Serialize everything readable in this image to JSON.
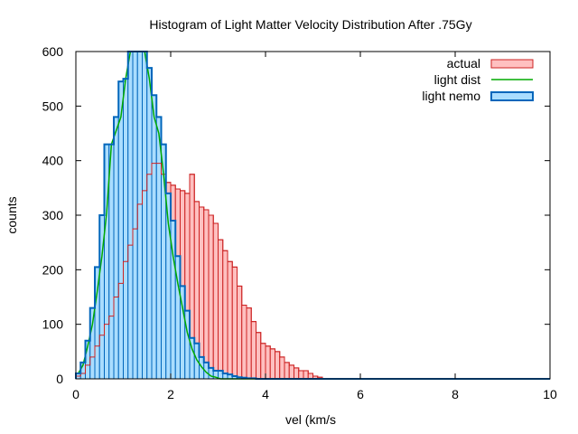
{
  "chart_data": {
    "type": "bar",
    "title": "Histogram of Light Matter Velocity Distribution After .75Gy",
    "xlabel": "vel (km/s",
    "ylabel": "counts",
    "xlim": [
      0,
      10
    ],
    "ylim": [
      0,
      600
    ],
    "x_ticks": [
      0,
      2,
      4,
      6,
      8,
      10
    ],
    "y_ticks": [
      0,
      100,
      200,
      300,
      400,
      500,
      600
    ],
    "grid": false,
    "legend_position": "top-right",
    "bin_width": 0.1,
    "series": [
      {
        "name": "actual",
        "style": "histogram",
        "fill": "#ffc0c0",
        "stroke": "#cc2222",
        "x": [
          0.05,
          0.15,
          0.25,
          0.35,
          0.45,
          0.55,
          0.65,
          0.75,
          0.85,
          0.95,
          1.05,
          1.15,
          1.25,
          1.35,
          1.45,
          1.55,
          1.65,
          1.75,
          1.85,
          1.95,
          2.05,
          2.15,
          2.25,
          2.35,
          2.45,
          2.55,
          2.65,
          2.75,
          2.85,
          2.95,
          3.05,
          3.15,
          3.25,
          3.35,
          3.45,
          3.55,
          3.65,
          3.75,
          3.85,
          3.95,
          4.05,
          4.15,
          4.25,
          4.35,
          4.45,
          4.55,
          4.65,
          4.75,
          4.85,
          4.95,
          5.05,
          5.15,
          5.25
        ],
        "values": [
          5,
          10,
          25,
          40,
          60,
          80,
          100,
          115,
          150,
          175,
          215,
          245,
          275,
          320,
          345,
          375,
          395,
          395,
          375,
          360,
          355,
          348,
          345,
          340,
          375,
          325,
          315,
          310,
          300,
          285,
          255,
          235,
          215,
          205,
          170,
          135,
          130,
          105,
          85,
          65,
          60,
          55,
          50,
          40,
          30,
          25,
          20,
          15,
          15,
          10,
          5,
          3,
          0
        ]
      },
      {
        "name": "light dist",
        "style": "line",
        "stroke": "#00aa00",
        "x": [
          0.05,
          0.15,
          0.25,
          0.35,
          0.45,
          0.55,
          0.65,
          0.75,
          0.85,
          0.95,
          1.05,
          1.15,
          1.25,
          1.35,
          1.45,
          1.55,
          1.65,
          1.75,
          1.85,
          1.95,
          2.05,
          2.15,
          2.25,
          2.35,
          2.45,
          2.55,
          2.65,
          2.75,
          2.85,
          2.95,
          3.05,
          3.15,
          3.25,
          3.35,
          3.45,
          3.55,
          3.65,
          3.75,
          3.85,
          3.95,
          4.05,
          4.5,
          5,
          5.5,
          6,
          7,
          8,
          9,
          10
        ],
        "values": [
          10,
          25,
          60,
          100,
          160,
          225,
          305,
          430,
          455,
          480,
          550,
          600,
          600,
          600,
          610,
          550,
          480,
          450,
          375,
          285,
          225,
          175,
          130,
          85,
          55,
          35,
          22,
          12,
          5,
          3,
          0,
          0,
          0,
          0,
          0,
          0,
          0,
          0,
          0,
          0,
          0,
          0,
          0,
          0,
          0,
          0,
          0,
          0,
          0
        ]
      },
      {
        "name": "light nemo",
        "style": "histogram",
        "fill": "#aaddff",
        "stroke": "#0066bb",
        "x": [
          0.05,
          0.15,
          0.25,
          0.35,
          0.45,
          0.55,
          0.65,
          0.75,
          0.85,
          0.95,
          1.05,
          1.15,
          1.25,
          1.35,
          1.45,
          1.55,
          1.65,
          1.75,
          1.85,
          1.95,
          2.05,
          2.15,
          2.25,
          2.35,
          2.45,
          2.55,
          2.65,
          2.75,
          2.85,
          2.95,
          3.05,
          3.15,
          3.25,
          3.35,
          3.45,
          3.55,
          3.65,
          3.75,
          3.85,
          3.95,
          4.05
        ],
        "values": [
          10,
          30,
          70,
          130,
          205,
          300,
          430,
          430,
          480,
          545,
          550,
          600,
          600,
          600,
          600,
          570,
          520,
          480,
          430,
          340,
          290,
          225,
          170,
          125,
          75,
          65,
          40,
          30,
          20,
          15,
          15,
          10,
          8,
          5,
          3,
          2,
          1,
          1,
          0,
          0,
          0
        ]
      }
    ]
  }
}
